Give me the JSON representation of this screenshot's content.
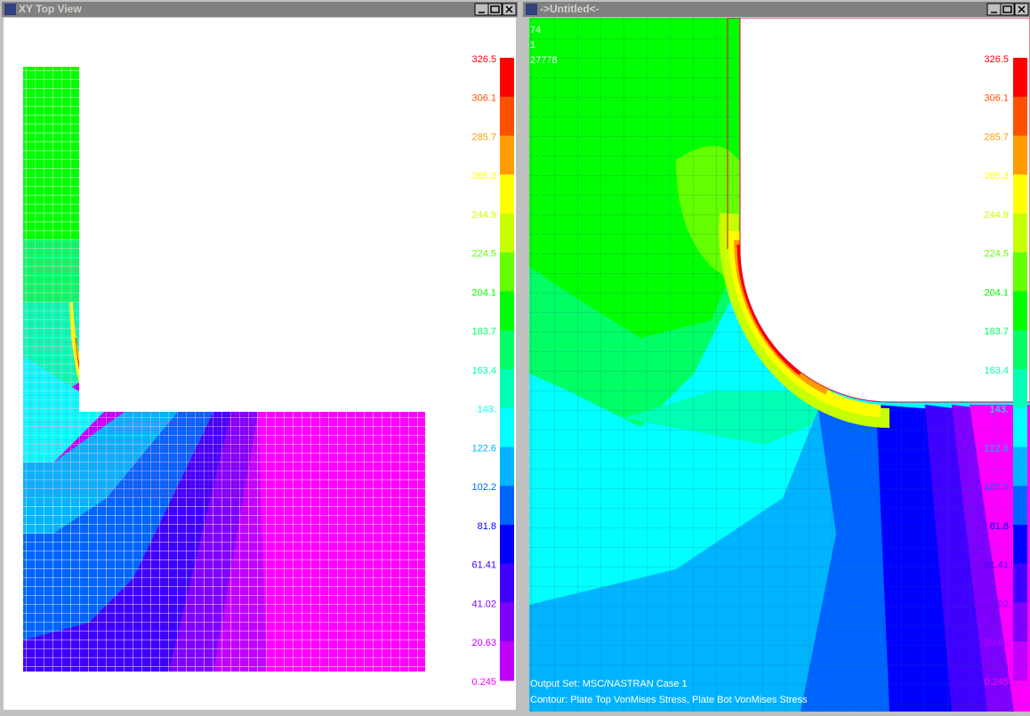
{
  "windows": [
    {
      "title": "XY Top View",
      "legend": [
        "326.5",
        "306.1",
        "285.7",
        "265.3",
        "244.9",
        "224.5",
        "204.1",
        "183.7",
        "163.4",
        "143.",
        "122.6",
        "102.2",
        "81.8",
        "61.41",
        "41.02",
        "20.63",
        "0.245"
      ]
    },
    {
      "title": "->Untitled<-",
      "info_lines": [
        "74",
        "1",
        "27778"
      ],
      "legend": [
        "326.5",
        "306.1",
        "285.7",
        "265.3",
        "244.9",
        "224.5",
        "204.1",
        "183.7",
        "163.4",
        "143.",
        "122.6",
        "102.2",
        "81.8",
        "61.41",
        "41.02",
        "20.63",
        "0.245"
      ],
      "status_lines": [
        "Output Set: MSC/NASTRAN Case 1",
        "Contour: Plate Top VonMises Stress, Plate Bot VonMises Stress"
      ]
    }
  ],
  "contour_colors": [
    "#ff0000",
    "#ff5000",
    "#ff9c00",
    "#ffff00",
    "#c8ff00",
    "#64ff00",
    "#00ff00",
    "#00ff64",
    "#00ffb4",
    "#00ffff",
    "#00b4ff",
    "#0064ff",
    "#0000ff",
    "#4000ff",
    "#8000ff",
    "#c000ff",
    "#ff00ff"
  ]
}
